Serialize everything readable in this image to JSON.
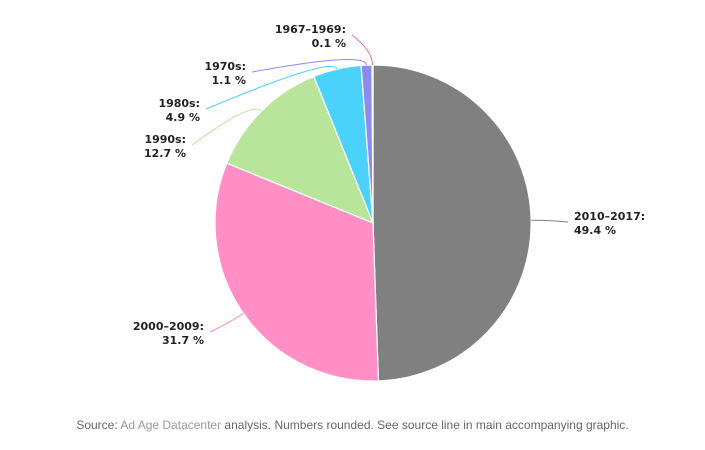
{
  "chart_data": {
    "type": "pie",
    "title": "",
    "slices": [
      {
        "label": "2010–2017:",
        "value": 49.4,
        "value_text": "49.4 %",
        "color": "#808080"
      },
      {
        "label": "2000–2009:",
        "value": 31.7,
        "value_text": "31.7 %",
        "color": "#ff8fc5"
      },
      {
        "label": "1990s:",
        "value": 12.7,
        "value_text": "12.7 %",
        "color": "#b9e59b"
      },
      {
        "label": "1980s:",
        "value": 4.9,
        "value_text": "4.9 %",
        "color": "#4bd2fa"
      },
      {
        "label": "1970s:",
        "value": 1.1,
        "value_text": "1.1 %",
        "color": "#8c8cf0"
      },
      {
        "label": "1967–1969:",
        "value": 0.1,
        "value_text": "0.1 %",
        "color": "#ff6a9a"
      }
    ]
  },
  "footer": {
    "prefix": "Source: ",
    "link": "Ad Age Datacenter",
    "suffix": " analysis. Numbers rounded. See source line in main accompanying graphic."
  }
}
